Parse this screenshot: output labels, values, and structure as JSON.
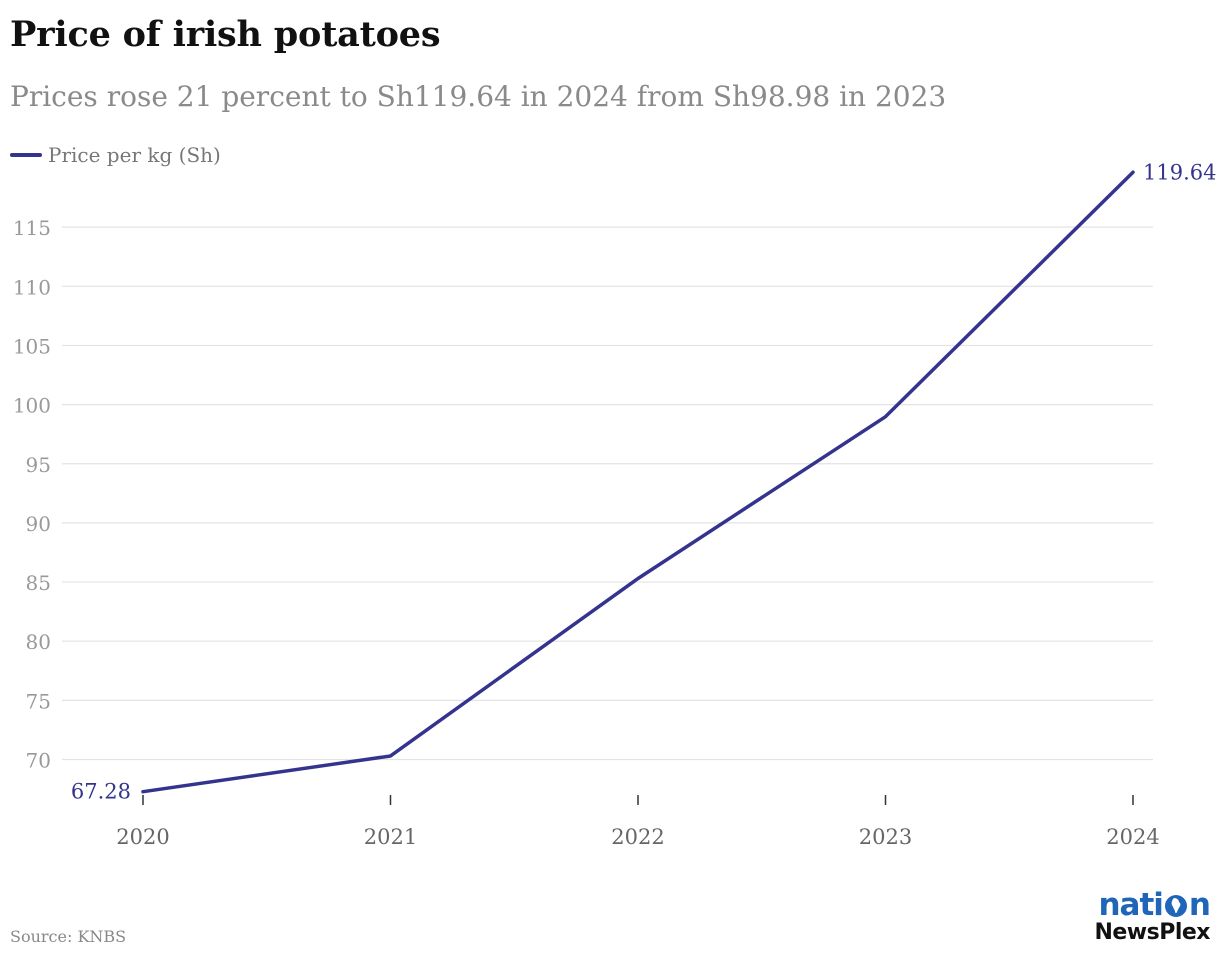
{
  "header": {
    "title": "Price of irish potatoes",
    "subtitle": "Prices rose 21 percent to Sh119.64 in 2024 from Sh98.98 in 2023"
  },
  "colors": {
    "series": "#34348f",
    "grid": "#e3e3e3",
    "tick_text": "#999999",
    "x_tick_text": "#666666"
  },
  "chart_data": {
    "type": "line",
    "title": "Price of irish potatoes",
    "subtitle": "Prices rose 21 percent to Sh119.64 in 2024 from Sh98.98 in 2023",
    "xlabel": "",
    "ylabel": "",
    "x": [
      "2020",
      "2021",
      "2022",
      "2023",
      "2024"
    ],
    "series": [
      {
        "name": "Price per kg (Sh)",
        "values": [
          67.28,
          70.3,
          85.3,
          98.98,
          119.64
        ]
      }
    ],
    "ylim": [
      67,
      120
    ],
    "yticks": [
      70,
      75,
      80,
      85,
      90,
      95,
      100,
      105,
      110,
      115
    ],
    "grid": true,
    "legend_position": "top-left",
    "annotations": [
      {
        "index": 0,
        "text": "67.28",
        "side": "left"
      },
      {
        "index": 4,
        "text": "119.64",
        "side": "right"
      }
    ]
  },
  "footer": {
    "source": "Source: KNBS",
    "logo_top_left": "nati",
    "logo_top_right": "n",
    "logo_bottom": "NewsPlex"
  }
}
